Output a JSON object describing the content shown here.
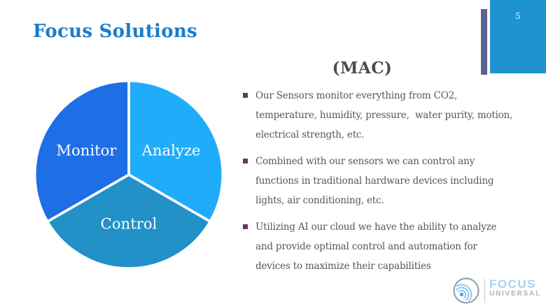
{
  "slide": {
    "page_number": "5",
    "title": "Focus Solutions",
    "heading": "(MAC)",
    "bullets": [
      {
        "lines": [
          "Our Sensors monitor everything from CO2,",
          "temperature, humidity, pressure,  water purity, motion,",
          "electrical strength, etc."
        ]
      },
      {
        "lines": [
          "Combined with our sensors we can control any",
          "functions in traditional hardware devices including",
          "lights, air conditioning, etc."
        ]
      },
      {
        "lines": [
          "Utilizing AI our cloud we have the ability to analyze",
          "and provide optimal control and automation for",
          "devices to maximize their capabilities"
        ]
      }
    ],
    "colors": {
      "title": "#1b7ac9",
      "heading": "#4c4c4e",
      "body_text": "#57575a",
      "bullet_marker": "#6e3264",
      "corner_tab": "#1d93d1",
      "accent_bar": "#5c6193"
    }
  },
  "chart_data": {
    "type": "pie",
    "title": "",
    "labels": [
      "Analyze",
      "Control",
      "Monitor"
    ],
    "values": [
      33.33,
      33.33,
      33.33
    ],
    "colors": [
      "#1fadfb",
      "#2191c8",
      "#1e6fe6"
    ],
    "label_color": "#ffffff",
    "start_angle": "12 o'clock, clockwise",
    "legend": "none (labels inside slices)"
  },
  "logo": {
    "brand": "FOCUS",
    "brand_sub": "UNIVERSAL",
    "brand_color": "#a7d3f0",
    "sub_color": "#b1b4b7"
  }
}
